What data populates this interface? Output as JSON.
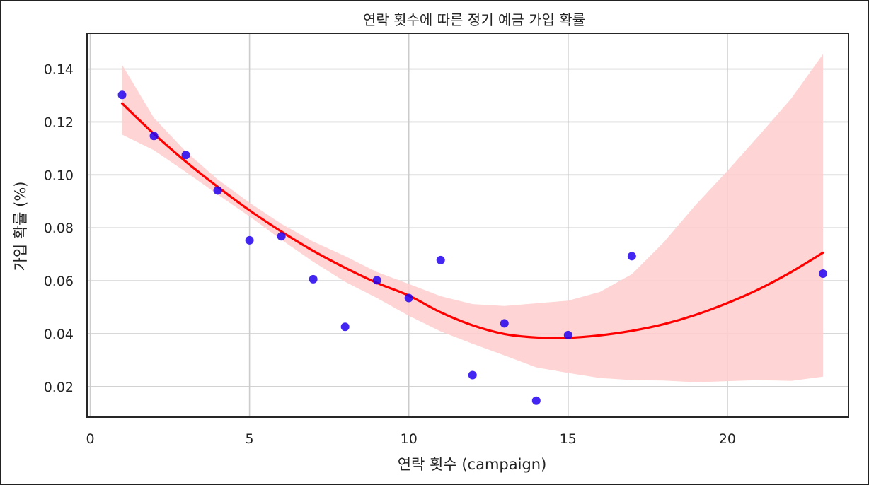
{
  "chart_data": {
    "type": "scatter",
    "title": "연락 횟수에 따른 정기 예금 가입 확률",
    "xlabel": "연락 횟수 (campaign)",
    "ylabel": "가입 확률 (%)",
    "xlim": [
      -0.1,
      23.8
    ],
    "ylim": [
      0.0085,
      0.1535
    ],
    "x_ticks": [
      0,
      5,
      10,
      15,
      20
    ],
    "y_ticks": [
      0.02,
      0.04,
      0.06,
      0.08,
      0.1,
      0.12,
      0.14
    ],
    "x_tick_labels": [
      "0",
      "5",
      "10",
      "15",
      "20"
    ],
    "y_tick_labels": [
      "0.02",
      "0.04",
      "0.06",
      "0.08",
      "0.10",
      "0.12",
      "0.14"
    ],
    "grid": true,
    "series": [
      {
        "type": "scatter",
        "color": "#2200ee",
        "x": [
          1,
          2,
          3,
          4,
          5,
          6,
          7,
          8,
          9,
          10,
          11,
          12,
          13,
          14,
          15,
          17,
          23
        ],
        "y": [
          0.1302,
          0.1147,
          0.1075,
          0.0941,
          0.0753,
          0.0768,
          0.0606,
          0.0426,
          0.0602,
          0.0535,
          0.0678,
          0.0244,
          0.0439,
          0.0147,
          0.0395,
          0.0693,
          0.0627
        ]
      },
      {
        "type": "regression-line",
        "color": "#ff0000",
        "x": [
          1,
          2,
          3,
          4,
          5,
          6,
          7,
          8,
          9,
          10,
          11,
          12,
          13,
          14,
          15,
          16,
          17,
          18,
          19,
          20,
          21,
          22,
          23
        ],
        "y": [
          0.127,
          0.1155,
          0.105,
          0.0955,
          0.0866,
          0.0786,
          0.0713,
          0.0649,
          0.0592,
          0.0544,
          0.0481,
          0.0432,
          0.0399,
          0.0386,
          0.0385,
          0.0394,
          0.0411,
          0.0436,
          0.0471,
          0.0516,
          0.0569,
          0.0633,
          0.0706
        ]
      },
      {
        "type": "confidence-band",
        "color": "#ffcccc",
        "x": [
          1,
          2,
          3,
          4,
          5,
          6,
          7,
          8,
          9,
          10,
          11,
          12,
          13,
          14,
          15,
          16,
          17,
          18,
          19,
          20,
          21,
          22,
          23
        ],
        "upper": [
          0.1416,
          0.1215,
          0.1088,
          0.0983,
          0.0895,
          0.0815,
          0.0748,
          0.0693,
          0.0633,
          0.0588,
          0.0542,
          0.0512,
          0.0505,
          0.0515,
          0.0525,
          0.0558,
          0.0625,
          0.0745,
          0.0886,
          0.1015,
          0.115,
          0.1288,
          0.1456
        ]
      },
      {
        "type": "confidence-band-lower",
        "x": [
          1,
          2,
          3,
          4,
          5,
          6,
          7,
          8,
          9,
          10,
          11,
          12,
          13,
          14,
          15,
          16,
          17,
          18,
          19,
          20,
          21,
          22,
          23
        ],
        "lower": [
          0.1152,
          0.1093,
          0.1011,
          0.0926,
          0.0843,
          0.0755,
          0.0672,
          0.0596,
          0.0535,
          0.0468,
          0.0409,
          0.0362,
          0.0318,
          0.0273,
          0.0252,
          0.0233,
          0.0225,
          0.0223,
          0.0217,
          0.0221,
          0.0225,
          0.0222,
          0.0238
        ]
      }
    ]
  }
}
